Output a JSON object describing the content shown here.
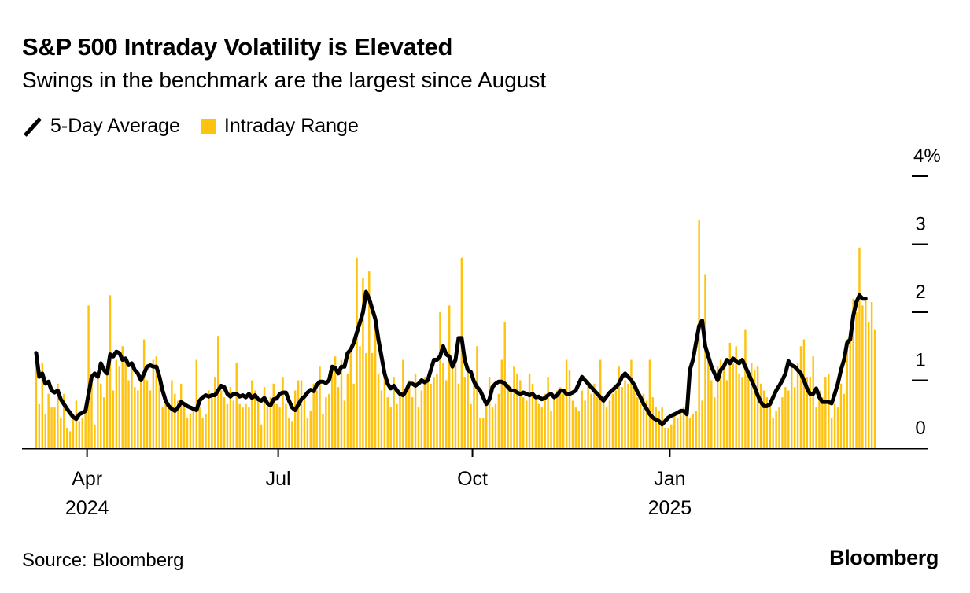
{
  "header": {
    "title": "S&P 500 Intraday Volatility is Elevated",
    "subtitle": "Swings in the benchmark are the largest since August"
  },
  "legend": {
    "items": [
      {
        "label": "5-Day Average",
        "icon": "line-icon",
        "color": "#000000"
      },
      {
        "label": "Intraday Range",
        "icon": "square-swatch-icon",
        "color": "#FFC20E"
      }
    ]
  },
  "footer": {
    "source": "Source: Bloomberg",
    "brand": "Bloomberg"
  },
  "chart_data": {
    "type": "bar",
    "title": "S&P 500 Intraday Volatility is Elevated",
    "subtitle": "Swings in the benchmark are the largest since August",
    "xlabel": "",
    "ylabel": "",
    "y_unit": "%",
    "ylim": [
      0,
      4
    ],
    "y_ticks": [
      {
        "value": 0,
        "label": "0"
      },
      {
        "value": 1,
        "label": "1"
      },
      {
        "value": 2,
        "label": "2"
      },
      {
        "value": 3,
        "label": "3"
      },
      {
        "value": 4,
        "label": "4%"
      }
    ],
    "x_ticks": [
      {
        "label": "Apr",
        "sublabel": "2024",
        "index": 17
      },
      {
        "label": "Jul",
        "sublabel": "",
        "index": 79
      },
      {
        "label": "Oct",
        "sublabel": "",
        "index": 142
      },
      {
        "label": "Jan",
        "sublabel": "2025",
        "index": 206
      }
    ],
    "grid": false,
    "legend_position": "top-left",
    "colors": {
      "bars": "#FFC20E",
      "line": "#000000",
      "axis": "#000000"
    },
    "date_range": [
      "2024-03",
      "2025-03"
    ],
    "series": [
      {
        "name": "Intraday Range",
        "type": "bar",
        "values": [
          1.3,
          0.65,
          1.25,
          0.5,
          0.8,
          0.6,
          0.6,
          0.95,
          0.45,
          0.8,
          0.3,
          0.25,
          0.5,
          0.7,
          0.4,
          0.45,
          0.55,
          2.1,
          1.1,
          0.35,
          1.05,
          0.95,
          0.75,
          1.2,
          2.25,
          0.85,
          1.3,
          1.2,
          1.5,
          1.3,
          1.0,
          1.2,
          0.9,
          0.85,
          1.0,
          1.6,
          1.0,
          0.85,
          1.3,
          1.35,
          1.0,
          0.6,
          0.75,
          0.6,
          1.0,
          0.8,
          0.7,
          0.95,
          0.65,
          0.45,
          0.5,
          0.55,
          1.3,
          0.6,
          0.45,
          0.5,
          0.85,
          0.75,
          1.05,
          1.65,
          0.85,
          0.75,
          0.65,
          0.9,
          0.7,
          1.25,
          0.65,
          0.6,
          0.65,
          0.6,
          1.0,
          0.85,
          0.7,
          0.35,
          0.9,
          0.6,
          0.75,
          0.95,
          0.65,
          0.6,
          1.05,
          0.65,
          0.45,
          0.4,
          0.85,
          1.0,
          1.0,
          0.75,
          0.45,
          0.55,
          0.95,
          0.85,
          1.2,
          0.5,
          0.75,
          0.8,
          1.1,
          1.35,
          0.9,
          1.3,
          0.7,
          1.1,
          1.45,
          0.95,
          2.8,
          1.5,
          2.5,
          1.4,
          2.6,
          1.4,
          1.8,
          1.1,
          0.85,
          1.1,
          0.75,
          0.6,
          1.05,
          0.65,
          0.8,
          1.3,
          0.85,
          1.0,
          0.75,
          1.1,
          0.6,
          0.85,
          1.05,
          1.0,
          0.95,
          1.05,
          1.1,
          2.0,
          1.25,
          1.0,
          2.1,
          1.2,
          1.35,
          0.95,
          2.8,
          1.05,
          1.2,
          0.65,
          0.95,
          1.5,
          0.45,
          0.45,
          0.7,
          1.05,
          0.6,
          0.65,
          0.8,
          1.3,
          1.85,
          0.95,
          0.9,
          1.2,
          1.1,
          1.0,
          0.75,
          0.7,
          1.1,
          0.95,
          0.75,
          0.65,
          0.6,
          0.8,
          1.05,
          0.55,
          0.75,
          0.85,
          0.9,
          0.8,
          1.3,
          1.15,
          0.7,
          0.6,
          0.55,
          0.85,
          0.7,
          1.0,
          0.8,
          0.95,
          0.75,
          1.3,
          0.75,
          0.6,
          0.7,
          0.8,
          0.85,
          1.2,
          0.9,
          1.0,
          0.95,
          1.3,
          0.9,
          0.75,
          0.65,
          0.8,
          0.7,
          1.3,
          0.75,
          0.6,
          0.55,
          0.6,
          0.3,
          0.3,
          0.35,
          0.5,
          0.45,
          0.55,
          0.6,
          0.55,
          0.45,
          0.5,
          0.55,
          3.35,
          0.7,
          2.55,
          1.3,
          1.0,
          0.75,
          1.2,
          1.3,
          1.25,
          1.0,
          1.55,
          1.25,
          1.5,
          1.1,
          1.05,
          1.75,
          1.05,
          1.25,
          1.15,
          1.2,
          0.95,
          0.85,
          0.75,
          0.65,
          0.45,
          0.55,
          0.6,
          0.75,
          0.9,
          0.85,
          1.25,
          0.9,
          1.25,
          1.5,
          1.6,
          1.05,
          1.05,
          1.35,
          0.6,
          0.85,
          0.75,
          1.05,
          1.1,
          0.45,
          0.65,
          0.6,
          0.95,
          0.8,
          1.6,
          1.7,
          2.2,
          2.0,
          2.95,
          2.1,
          2.2,
          1.85,
          2.15,
          1.75
        ]
      },
      {
        "name": "5-Day Average",
        "type": "line",
        "values": [
          1.4,
          1.05,
          1.1,
          0.95,
          0.98,
          0.85,
          0.82,
          0.85,
          0.72,
          0.65,
          0.58,
          0.52,
          0.46,
          0.43,
          0.5,
          0.52,
          0.55,
          0.8,
          1.05,
          1.1,
          1.05,
          1.25,
          1.15,
          1.1,
          1.38,
          1.35,
          1.42,
          1.4,
          1.3,
          1.32,
          1.22,
          1.25,
          1.15,
          1.1,
          1.0,
          1.1,
          1.2,
          1.22,
          1.2,
          1.2,
          1.05,
          0.85,
          0.7,
          0.62,
          0.58,
          0.55,
          0.6,
          0.68,
          0.65,
          0.62,
          0.6,
          0.58,
          0.56,
          0.7,
          0.75,
          0.78,
          0.76,
          0.78,
          0.78,
          0.85,
          0.92,
          0.9,
          0.8,
          0.76,
          0.8,
          0.8,
          0.76,
          0.78,
          0.75,
          0.8,
          0.74,
          0.78,
          0.72,
          0.7,
          0.74,
          0.66,
          0.63,
          0.72,
          0.73,
          0.8,
          0.82,
          0.82,
          0.7,
          0.6,
          0.56,
          0.64,
          0.72,
          0.76,
          0.82,
          0.86,
          0.84,
          0.93,
          0.98,
          0.98,
          0.96,
          1.0,
          1.2,
          1.18,
          1.1,
          1.2,
          1.2,
          1.4,
          1.45,
          1.55,
          1.7,
          1.85,
          2.0,
          2.3,
          2.2,
          2.05,
          1.9,
          1.6,
          1.35,
          1.1,
          0.95,
          0.88,
          0.92,
          0.85,
          0.8,
          0.78,
          0.85,
          0.95,
          0.95,
          0.92,
          0.95,
          1.0,
          0.97,
          1.0,
          1.15,
          1.3,
          1.3,
          1.35,
          1.5,
          1.38,
          1.35,
          1.2,
          1.3,
          1.62,
          1.62,
          1.3,
          1.15,
          1.12,
          0.98,
          0.9,
          0.85,
          0.75,
          0.65,
          0.72,
          0.9,
          0.95,
          0.98,
          0.98,
          0.95,
          0.9,
          0.85,
          0.85,
          0.82,
          0.8,
          0.82,
          0.8,
          0.78,
          0.8,
          0.75,
          0.76,
          0.72,
          0.74,
          0.78,
          0.8,
          0.75,
          0.78,
          0.85,
          0.85,
          0.8,
          0.8,
          0.82,
          0.85,
          0.95,
          1.05,
          1.0,
          0.95,
          0.9,
          0.85,
          0.8,
          0.75,
          0.7,
          0.76,
          0.82,
          0.86,
          0.9,
          0.95,
          1.05,
          1.1,
          1.05,
          1.0,
          0.93,
          0.83,
          0.75,
          0.65,
          0.58,
          0.5,
          0.45,
          0.42,
          0.4,
          0.35,
          0.4,
          0.45,
          0.48,
          0.5,
          0.52,
          0.55,
          0.55,
          0.5,
          1.15,
          1.3,
          1.55,
          1.8,
          1.88,
          1.5,
          1.35,
          1.2,
          1.1,
          1.0,
          1.15,
          1.2,
          1.3,
          1.25,
          1.32,
          1.28,
          1.25,
          1.3,
          1.2,
          1.1,
          1.0,
          0.9,
          0.78,
          0.68,
          0.62,
          0.62,
          0.65,
          0.75,
          0.85,
          0.92,
          1.0,
          1.1,
          1.28,
          1.22,
          1.2,
          1.15,
          1.1,
          1.0,
          0.88,
          0.8,
          0.8,
          0.88,
          0.75,
          0.68,
          0.68,
          0.68,
          0.66,
          0.8,
          0.95,
          1.15,
          1.3,
          1.55,
          1.6,
          1.95,
          2.15,
          2.25,
          2.2,
          2.2
        ]
      }
    ]
  }
}
